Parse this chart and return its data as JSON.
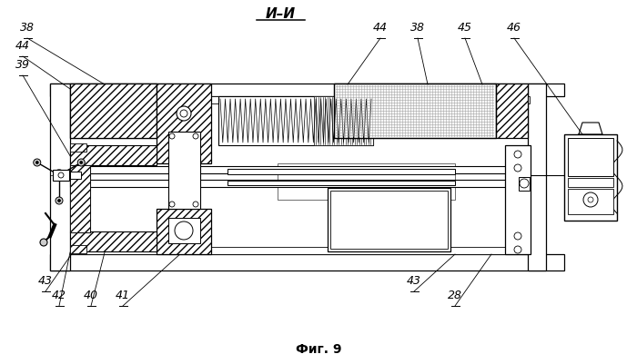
{
  "title": "И–И",
  "caption": "Фиг. 9",
  "bg_color": "#ffffff",
  "line_color": "#000000",
  "fig_width": 7.0,
  "fig_height": 4.01,
  "dpi": 100,
  "labels_tl": [
    [
      "38",
      30,
      38
    ],
    [
      "44",
      30,
      58
    ],
    [
      "39",
      30,
      80
    ]
  ],
  "labels_tr": [
    [
      "44",
      418,
      38
    ],
    [
      "38",
      458,
      38
    ],
    [
      "45",
      510,
      38
    ],
    [
      "46",
      562,
      38
    ]
  ],
  "labels_bl": [
    [
      "43",
      50,
      318
    ],
    [
      "42",
      65,
      333
    ],
    [
      "40",
      100,
      333
    ],
    [
      "41",
      135,
      333
    ]
  ],
  "labels_br": [
    [
      "43",
      455,
      318
    ],
    [
      "28",
      500,
      333
    ]
  ]
}
